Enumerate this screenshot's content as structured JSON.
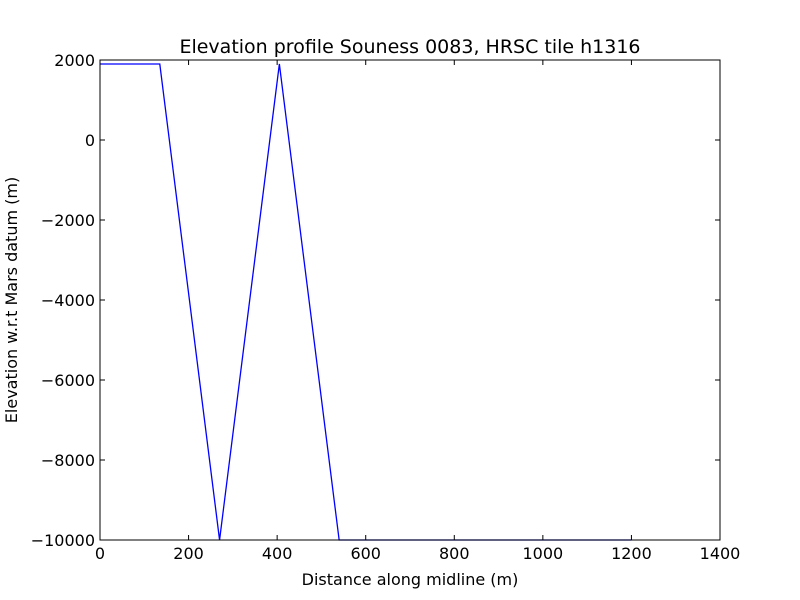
{
  "chart_data": {
    "type": "line",
    "title": "Elevation profile Souness 0083, HRSC tile h1316",
    "xlabel": "Distance along midline (m)",
    "ylabel": "Elevation w.r.t Mars datum (m)",
    "xlim": [
      0,
      1400
    ],
    "ylim": [
      -10000,
      2000
    ],
    "x_ticks": [
      0,
      200,
      400,
      600,
      800,
      1000,
      1200,
      1400
    ],
    "y_ticks": [
      2000,
      0,
      -2000,
      -4000,
      -6000,
      -8000,
      -10000
    ],
    "x_tick_labels": [
      "0",
      "200",
      "400",
      "600",
      "800",
      "1000",
      "1200",
      "1400"
    ],
    "y_tick_labels": [
      "2000",
      "0",
      "−2000",
      "−4000",
      "−6000",
      "−8000",
      "−10000"
    ],
    "grid": false,
    "series": [
      {
        "color": "#0000ff",
        "x": [
          0,
          135,
          270,
          405,
          540,
          1200
        ],
        "y": [
          1900,
          1900,
          -10000,
          1900,
          -10000,
          -10000
        ]
      }
    ]
  }
}
